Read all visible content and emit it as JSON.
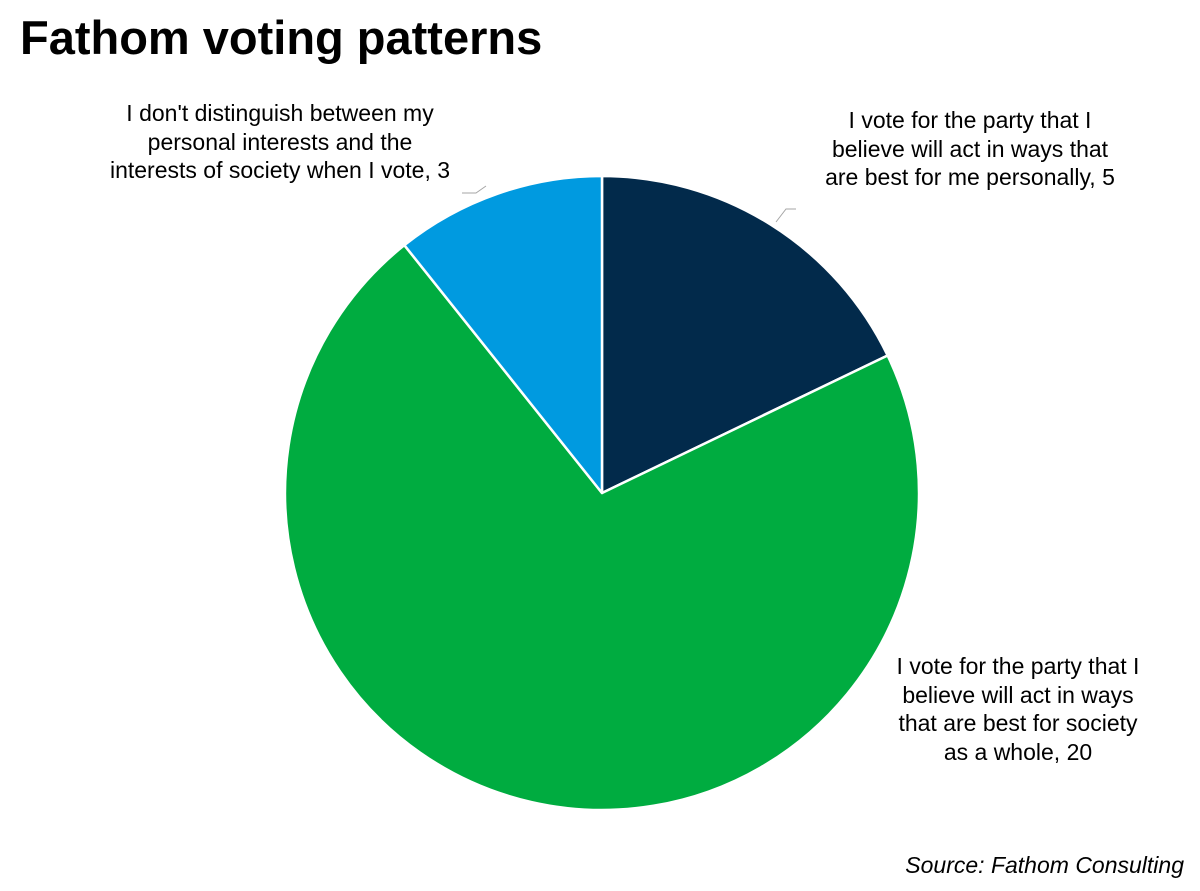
{
  "chart_data": {
    "type": "pie",
    "title": "Fathom voting patterns",
    "slices": [
      {
        "label_lines": [
          "I vote for the party that I",
          "believe will act in ways that",
          "are best for me personally, 5"
        ],
        "value": 5,
        "color": "#022a4b"
      },
      {
        "label_lines": [
          "I vote for the party that I",
          "believe will act in ways",
          "that are best for society",
          "as a whole, 20"
        ],
        "value": 20,
        "color": "#00ac40"
      },
      {
        "label_lines": [
          "I don't distinguish between my",
          "personal interests and the",
          "interests of society when I vote, 3"
        ],
        "value": 3,
        "color": "#009ae0"
      }
    ],
    "start_angle_deg": 0,
    "direction": "clockwise",
    "legend": "none",
    "data_labels": "outside with leader lines"
  },
  "source": "Source: Fathom Consulting"
}
